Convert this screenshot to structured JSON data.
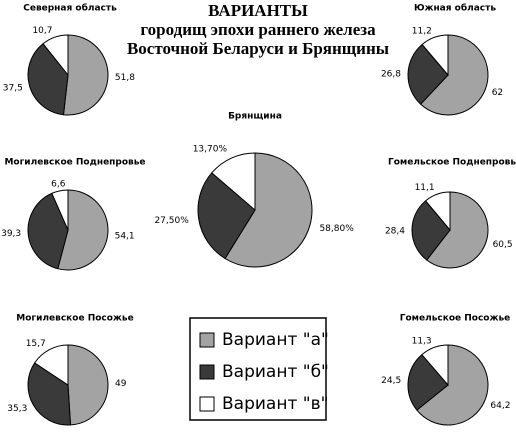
{
  "title": [
    "ВАРИАНТЫ",
    "городищ эпохи раннего железа",
    "Восточной Беларуси и Брянщины"
  ],
  "legend": [
    {
      "name": "Вариант \"а\"",
      "color": "#a3a3a3"
    },
    {
      "name": "Вариант \"б\"",
      "color": "#3a3a3a"
    },
    {
      "name": "Вариант \"в\"",
      "color": "#ffffff"
    }
  ],
  "chart_data": [
    {
      "type": "pie",
      "title": "Северная область",
      "values": [
        51.8,
        37.5,
        10.7
      ],
      "value_labels": [
        "51,8",
        "37,5",
        "10,7"
      ]
    },
    {
      "type": "pie",
      "title": "Южная область",
      "values": [
        62,
        26.8,
        11.2
      ],
      "value_labels": [
        "62",
        "26,8",
        "11,2"
      ]
    },
    {
      "type": "pie",
      "title": "Брянщина",
      "values": [
        58.8,
        27.5,
        13.7
      ],
      "value_labels": [
        "58,80%",
        "27,50%",
        "13,70%"
      ]
    },
    {
      "type": "pie",
      "title": "Могилевское Поднепровье",
      "values": [
        54.1,
        39.3,
        6.6
      ],
      "value_labels": [
        "54,1",
        "39,3",
        "6,6"
      ]
    },
    {
      "type": "pie",
      "title": "Гомельское Поднепровь",
      "values": [
        60.5,
        28.4,
        11.1
      ],
      "value_labels": [
        "60,5",
        "28,4",
        "11,1"
      ]
    },
    {
      "type": "pie",
      "title": "Могилевское Посожье",
      "values": [
        49,
        35.3,
        15.7
      ],
      "value_labels": [
        "49",
        "35,3",
        "15,7"
      ]
    },
    {
      "type": "pie",
      "title": "Гомельское Посожье",
      "values": [
        64.2,
        24.5,
        11.3
      ],
      "value_labels": [
        "64,2",
        "24,5",
        "11,3"
      ]
    }
  ]
}
